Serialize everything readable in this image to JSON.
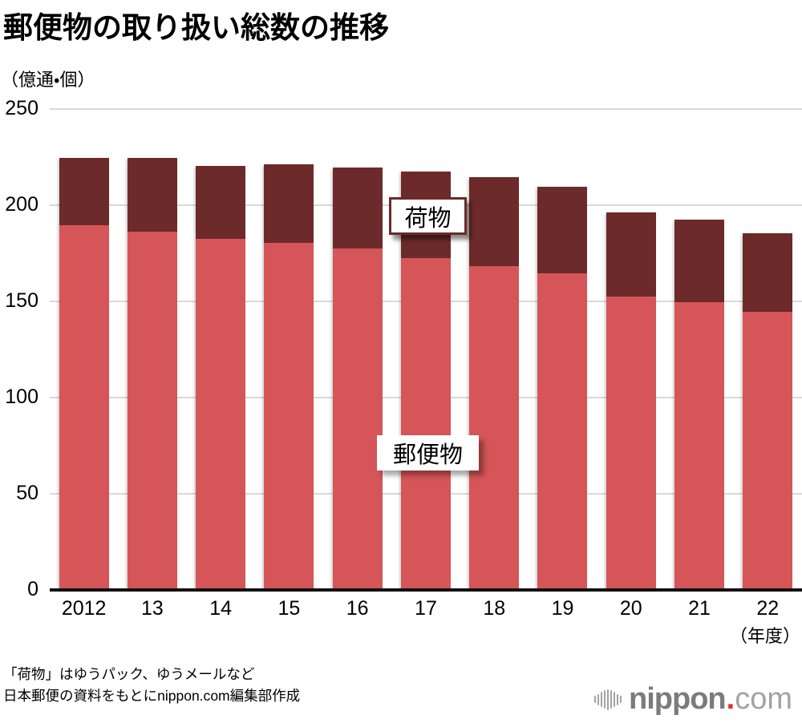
{
  "title": "郵便物の取り扱い総数の推移",
  "unit_label": "（億通・個）",
  "chart_data": {
    "type": "bar",
    "stacked": true,
    "title": "郵便物の取り扱い総数の推移",
    "ylabel": "（億通・個）",
    "xlabel": "（年度）",
    "ylim": [
      0,
      250
    ],
    "yticks": [
      0,
      50,
      100,
      150,
      200,
      250
    ],
    "grid": "horizontal",
    "categories": [
      "2012",
      "13",
      "14",
      "15",
      "16",
      "17",
      "18",
      "19",
      "20",
      "21",
      "22"
    ],
    "series": [
      {
        "name": "郵便物",
        "color": "#D65558",
        "values": [
          189,
          186,
          182,
          180,
          177,
          172,
          168,
          164,
          152,
          149,
          144
        ]
      },
      {
        "name": "荷物",
        "color": "#6C2A2A",
        "values": [
          35,
          38,
          38,
          41,
          42,
          45,
          46,
          45,
          44,
          43,
          41
        ]
      }
    ],
    "totals": [
      224,
      224,
      220,
      221,
      219,
      217,
      214,
      209,
      196,
      192,
      185
    ],
    "annotations": [
      {
        "text": "荷物",
        "style": "bordered-box"
      },
      {
        "text": "郵便物",
        "style": "plain-box"
      }
    ],
    "legend_position": "in-plot-labels"
  },
  "colors": {
    "mail_bar": "#D65558",
    "parcel_bar": "#6C2A2A",
    "gridline": "#d9d9d9",
    "axis": "#111111",
    "logo_gray": "#7b7b7b",
    "logo_red": "#e62e23"
  },
  "footer": {
    "line1": "「荷物」はゆうパック、ゆうメールなど",
    "line2": "日本郵便の資料をもとにnippon.com編集部作成"
  },
  "logo": {
    "brand": "nippon",
    "dot": ".",
    "tld": "com"
  }
}
